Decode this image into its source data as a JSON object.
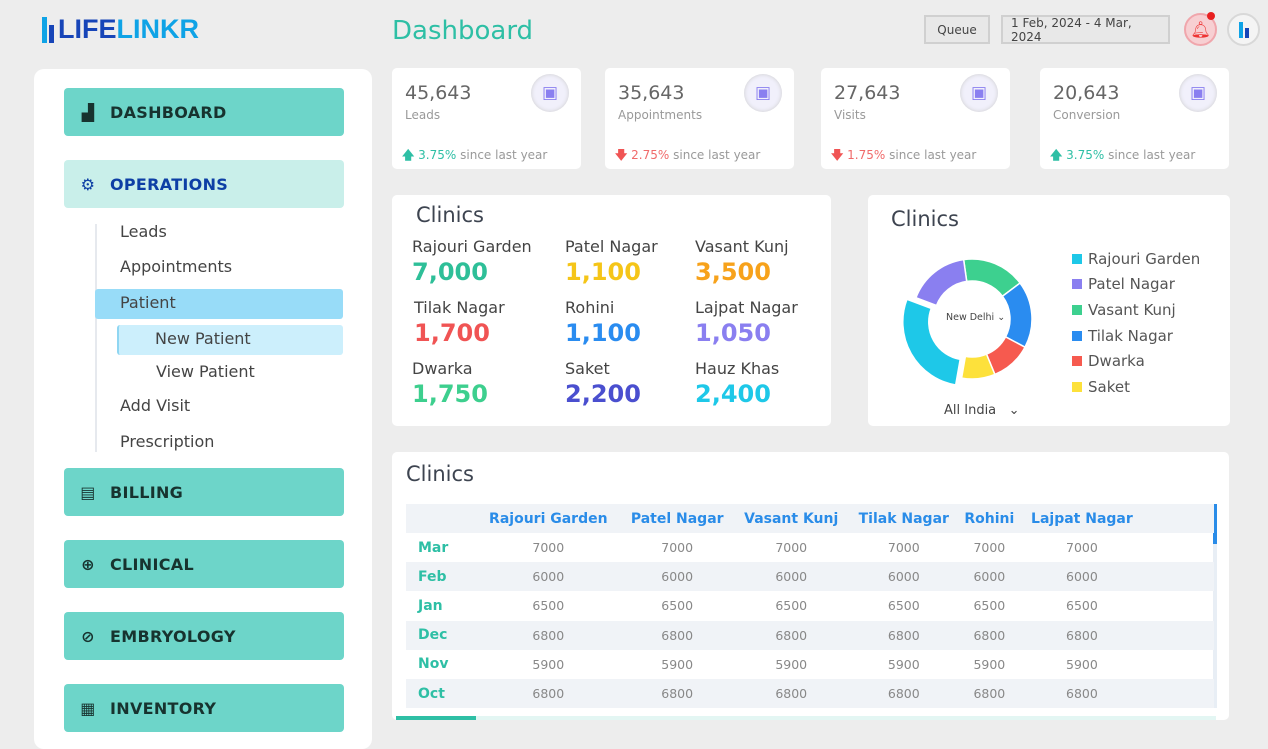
{
  "brand": {
    "name_part1": "LIFE",
    "name_part2": "LINKR"
  },
  "header": {
    "title": "Dashboard",
    "queue_label": "Queue",
    "date_range": "1 Feb, 2024 - 4 Mar, 2024"
  },
  "sidebar": {
    "items": [
      {
        "label": "DASHBOARD",
        "icon": "bar-chart-icon"
      },
      {
        "label": "OPERATIONS",
        "icon": "gear-icon"
      },
      {
        "label": "BILLING",
        "icon": "receipt-icon"
      },
      {
        "label": "CLINICAL",
        "icon": "plus-circle-icon"
      },
      {
        "label": "EMBRYOLOGY",
        "icon": "embryo-icon"
      },
      {
        "label": "INVENTORY",
        "icon": "boxes-icon"
      }
    ],
    "sub_items": [
      "Leads",
      "Appointments",
      "Patient",
      "New Patient",
      "View Patient",
      "Add Visit",
      "Prescription"
    ]
  },
  "stats": [
    {
      "value": "45,643",
      "label": "Leads",
      "change": "3.75%",
      "direction": "up",
      "suffix": "since last year"
    },
    {
      "value": "35,643",
      "label": "Appointments",
      "change": "2.75%",
      "direction": "down",
      "suffix": "since last year"
    },
    {
      "value": "27,643",
      "label": "Visits",
      "change": "1.75%",
      "direction": "down",
      "suffix": "since last year"
    },
    {
      "value": "20,643",
      "label": "Conversion",
      "change": "3.75%",
      "direction": "up",
      "suffix": "since last year"
    }
  ],
  "clinics_card": {
    "title": "Clinics",
    "items": [
      {
        "name": "Rajouri Garden",
        "value": "7,000",
        "color": "#2ebf98"
      },
      {
        "name": "Patel Nagar",
        "value": "1,100",
        "color": "#f5c518"
      },
      {
        "name": "Vasant Kunj",
        "value": "3,500",
        "color": "#f7a21b"
      },
      {
        "name": "Tilak Nagar",
        "value": "1,700",
        "color": "#f05454"
      },
      {
        "name": "Rohini",
        "value": "1,100",
        "color": "#2a8cf0"
      },
      {
        "name": "Lajpat Nagar",
        "value": "1,050",
        "color": "#8a7ff0"
      },
      {
        "name": "Dwarka",
        "value": "1,750",
        "color": "#3dcf8e"
      },
      {
        "name": "Saket",
        "value": "2,200",
        "color": "#4a4fcf"
      },
      {
        "name": "Hauz Khas",
        "value": "2,400",
        "color": "#1ec8e8"
      }
    ]
  },
  "donut": {
    "title": "Clinics",
    "center_label": "New Delhi",
    "region_select": "All India",
    "chart_data": {
      "type": "pie",
      "categories": [
        "Rajouri Garden",
        "Patel Nagar",
        "Vasant Kunj",
        "Tilak Nagar",
        "Dwarka",
        "Saket"
      ],
      "values": [
        28,
        17,
        17,
        18,
        11,
        9
      ],
      "colors": [
        "#1ec8e8",
        "#8a7ff0",
        "#3dd08f",
        "#2a8cf0",
        "#f65a4f",
        "#fde13b"
      ]
    }
  },
  "table": {
    "title": "Clinics",
    "columns": [
      "Rajouri Garden",
      "Patel Nagar",
      "Vasant Kunj",
      "Tilak Nagar",
      "Rohini",
      "Lajpat Nagar"
    ],
    "rows": [
      {
        "month": "Mar",
        "values": [
          "7000",
          "7000",
          "7000",
          "7000",
          "7000",
          "7000"
        ]
      },
      {
        "month": "Feb",
        "values": [
          "6000",
          "6000",
          "6000",
          "6000",
          "6000",
          "6000"
        ]
      },
      {
        "month": "Jan",
        "values": [
          "6500",
          "6500",
          "6500",
          "6500",
          "6500",
          "6500"
        ]
      },
      {
        "month": "Dec",
        "values": [
          "6800",
          "6800",
          "6800",
          "6800",
          "6800",
          "6800"
        ]
      },
      {
        "month": "Nov",
        "values": [
          "5900",
          "5900",
          "5900",
          "5900",
          "5900",
          "5900"
        ]
      },
      {
        "month": "Oct",
        "values": [
          "6800",
          "6800",
          "6800",
          "6800",
          "6800",
          "6800"
        ]
      }
    ]
  }
}
